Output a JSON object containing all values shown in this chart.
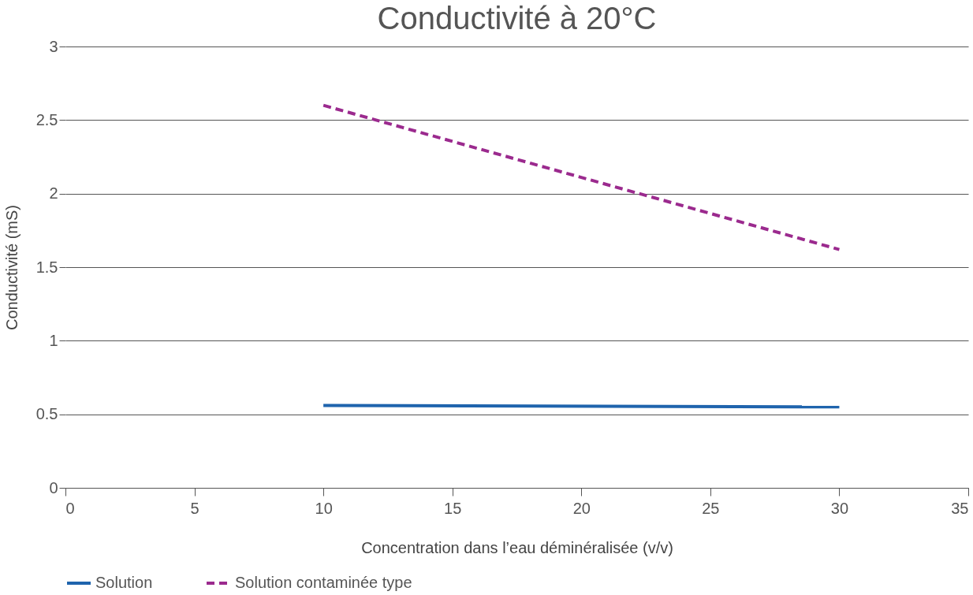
{
  "chart_data": {
    "type": "line",
    "title": "Conductivité à 20°C",
    "xlabel": "Concentration dans l’eau déminéralisée (v/v)",
    "ylabel": "Conductivité (mS)",
    "xlim": [
      0,
      35
    ],
    "xticks": [
      0,
      5,
      10,
      15,
      20,
      25,
      30,
      35
    ],
    "ylim": [
      0,
      3
    ],
    "yticks": [
      0,
      0.5,
      1,
      1.5,
      2,
      2.5,
      3
    ],
    "grid": "y",
    "legend": "bottom",
    "marker": "none",
    "x": [
      10,
      30
    ],
    "series": [
      {
        "name": "Solution",
        "color": "#1f64ad",
        "line_style": "solid",
        "values": [
          0.56,
          0.55
        ]
      },
      {
        "name": "Solution contaminée type",
        "color": "#9b2a8e",
        "line_style": "dashed",
        "values": [
          2.6,
          1.62
        ]
      }
    ]
  }
}
